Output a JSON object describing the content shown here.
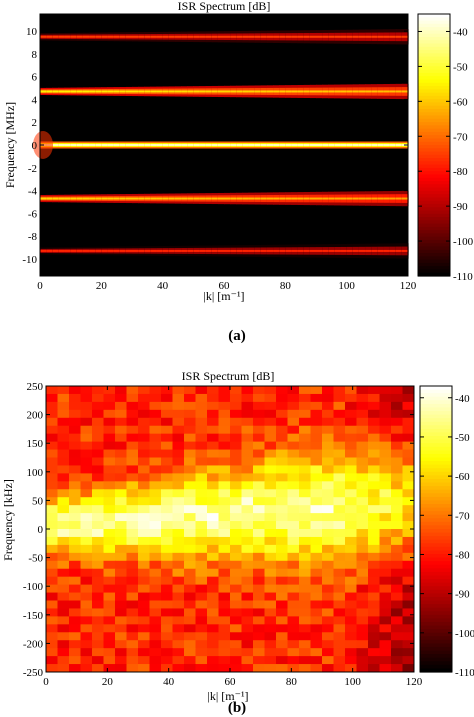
{
  "chart_data": [
    {
      "type": "heatmap",
      "title": "ISR Spectrum [dB]",
      "xlabel": "|k| [m⁻¹]",
      "ylabel": "Frequency [MHz]",
      "xlim": [
        0,
        120
      ],
      "ylim": [
        -11.5,
        11.5
      ],
      "xticks": [
        0,
        20,
        40,
        60,
        80,
        100,
        120
      ],
      "yticks": [
        10,
        8,
        6,
        4,
        2,
        0,
        -2,
        -4,
        -6,
        -8,
        -10
      ],
      "colorbar": {
        "ticks": [
          -40,
          -50,
          -60,
          -70,
          -80,
          -90,
          -100,
          -110
        ],
        "range": [
          -110,
          -35
        ]
      },
      "colormap": "hot",
      "caption": "(a)",
      "lines": [
        {
          "center": 0,
          "peak_db": -40
        },
        {
          "center": 4.7,
          "peak_db": -55
        },
        {
          "center": -4.7,
          "peak_db": -58
        },
        {
          "center": 9.5,
          "peak_db": -75
        },
        {
          "center": -9.3,
          "peak_db": -78
        }
      ]
    },
    {
      "type": "heatmap",
      "title": "ISR Spectrum [dB]",
      "xlabel": "|k| [m⁻¹]",
      "ylabel": "Frequency [kHz]",
      "xlim": [
        0,
        120
      ],
      "ylim": [
        -250,
        250
      ],
      "xticks": [
        0,
        20,
        40,
        60,
        80,
        100,
        120
      ],
      "yticks": [
        250,
        200,
        150,
        100,
        50,
        0,
        -50,
        -100,
        -150,
        -200,
        -250
      ],
      "colorbar": {
        "ticks": [
          -40,
          -50,
          -60,
          -70,
          -80,
          -90,
          -100,
          -110
        ],
        "range": [
          -110,
          -37
        ]
      },
      "colormap": "hot",
      "caption": "(b)",
      "grid_cells": {
        "nx": 32,
        "ny": 36
      }
    }
  ]
}
